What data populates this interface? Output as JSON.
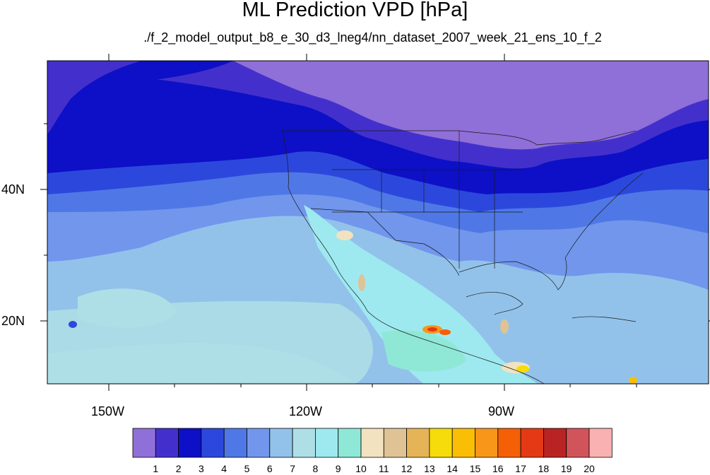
{
  "title": "ML Prediction VPD [hPa]",
  "subtitle": "./f_2_model_output_b8_e_30_d3_lneg4/nn_dataset_2007_week_21_ens_10_f_2",
  "axes": {
    "lon_labels": [
      "150W",
      "120W",
      "90W"
    ],
    "lat_labels": [
      "40N",
      "20N"
    ]
  },
  "colorbar": {
    "labels": [
      "1",
      "2",
      "3",
      "4",
      "5",
      "6",
      "7",
      "8",
      "9",
      "10",
      "11",
      "12",
      "13",
      "14",
      "15",
      "16",
      "17",
      "18",
      "19",
      "20"
    ],
    "colors": [
      "#8f6fd8",
      "#4330cc",
      "#0d10c6",
      "#2c48dc",
      "#4f78e6",
      "#7196ec",
      "#92c2ea",
      "#aedfe6",
      "#9ee9f0",
      "#8fe8d6",
      "#f2e2c0",
      "#dfc394",
      "#e5b457",
      "#f5dc0a",
      "#fbbe06",
      "#f8961a",
      "#f55f05",
      "#e33a15",
      "#b92422",
      "#d1545b",
      "#f9b1b1"
    ]
  },
  "chart_data": {
    "type": "heatmap",
    "title": "ML Prediction VPD [hPa]",
    "subtitle": "./f_2_model_output_b8_e_30_d3_lneg4/nn_dataset_2007_week_21_ens_10_f_2",
    "x_ticks": [
      "150W",
      "120W",
      "90W"
    ],
    "y_ticks": [
      "40N",
      "20N"
    ],
    "legend": "bottom",
    "color_levels": [
      1,
      2,
      3,
      4,
      5,
      6,
      7,
      8,
      9,
      10,
      11,
      12,
      13,
      14,
      15,
      16,
      17,
      18,
      19,
      20
    ]
  }
}
